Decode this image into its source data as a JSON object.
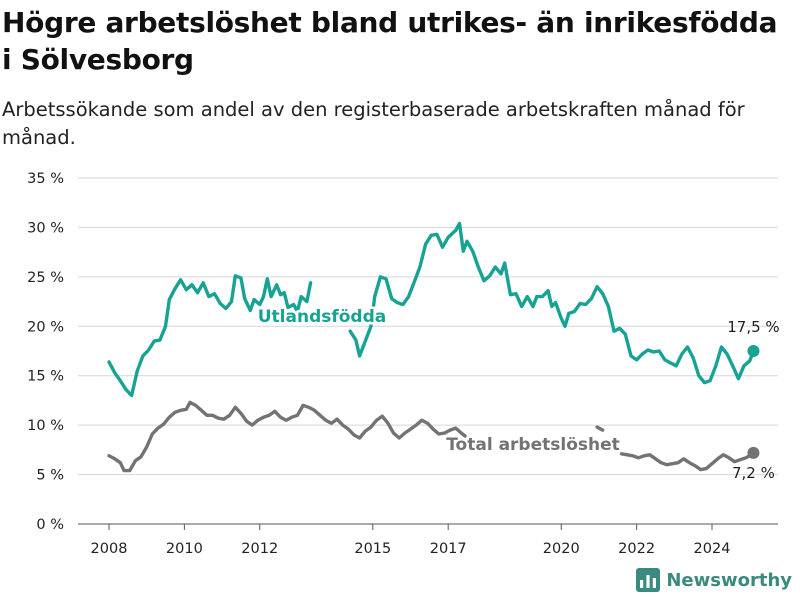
{
  "title": "Högre arbetslöshet bland utrikes- än inrikesfödda i Sölvesborg",
  "subtitle": "Arbetssökande som andel av den registerbaserade arbetskraften månad för månad.",
  "brand": {
    "name": "Newsworthy"
  },
  "colors": {
    "utlandsfodda": "#16a394",
    "total": "#737373",
    "grid": "#d6d6d6",
    "text": "#222222"
  },
  "chart_data": {
    "type": "line",
    "ylim": [
      0,
      35
    ],
    "xlim": [
      2007.5,
      2025.8
    ],
    "y_ticks": [
      0,
      5,
      10,
      15,
      20,
      25,
      30,
      35
    ],
    "y_tick_labels": [
      "0 %",
      "5 %",
      "10 %",
      "15 %",
      "20 %",
      "25 %",
      "30 %",
      "35 %"
    ],
    "x_ticks": [
      2008,
      2010,
      2012,
      2015,
      2017,
      2020,
      2022,
      2024
    ],
    "x_tick_labels": [
      "2008",
      "2010",
      "2012",
      "2015",
      "2017",
      "2020",
      "2022",
      "2024"
    ],
    "grid": true,
    "series": [
      {
        "name": "Utlandsfödda",
        "color": "#16a394",
        "end_label": "17,5 %",
        "segments": [
          [
            [
              2008.0,
              16.4
            ],
            [
              2008.15,
              15.3
            ],
            [
              2008.3,
              14.5
            ],
            [
              2008.45,
              13.6
            ],
            [
              2008.6,
              13.0
            ],
            [
              2008.75,
              15.5
            ],
            [
              2008.9,
              17.0
            ],
            [
              2009.05,
              17.6
            ],
            [
              2009.2,
              18.5
            ],
            [
              2009.35,
              18.6
            ],
            [
              2009.5,
              20.0
            ],
            [
              2009.6,
              22.7
            ],
            [
              2009.75,
              23.8
            ],
            [
              2009.9,
              24.7
            ],
            [
              2010.05,
              23.7
            ],
            [
              2010.2,
              24.2
            ],
            [
              2010.35,
              23.4
            ],
            [
              2010.5,
              24.4
            ],
            [
              2010.65,
              23.0
            ],
            [
              2010.8,
              23.3
            ],
            [
              2010.95,
              22.3
            ],
            [
              2011.1,
              21.8
            ],
            [
              2011.25,
              22.5
            ],
            [
              2011.35,
              25.1
            ],
            [
              2011.5,
              24.9
            ],
            [
              2011.6,
              22.8
            ],
            [
              2011.75,
              21.6
            ],
            [
              2011.85,
              22.7
            ],
            [
              2012.0,
              22.2
            ],
            [
              2012.1,
              23.0
            ],
            [
              2012.2,
              24.8
            ],
            [
              2012.3,
              23.0
            ],
            [
              2012.45,
              24.2
            ],
            [
              2012.55,
              23.2
            ],
            [
              2012.65,
              23.4
            ],
            [
              2012.75,
              21.9
            ],
            [
              2012.9,
              22.2
            ],
            [
              2013.0,
              21.5
            ],
            [
              2013.1,
              23.0
            ],
            [
              2013.25,
              22.5
            ],
            [
              2013.35,
              24.4
            ]
          ],
          [
            [
              2014.4,
              19.5
            ],
            [
              2014.55,
              18.6
            ],
            [
              2014.65,
              17.0
            ],
            [
              2014.8,
              18.5
            ],
            [
              2014.95,
              20.0
            ],
            [
              2015.05,
              23.0
            ],
            [
              2015.2,
              25.0
            ],
            [
              2015.35,
              24.8
            ],
            [
              2015.5,
              22.8
            ],
            [
              2015.65,
              22.4
            ],
            [
              2015.8,
              22.2
            ],
            [
              2015.95,
              23.0
            ],
            [
              2016.1,
              24.5
            ],
            [
              2016.25,
              26.0
            ],
            [
              2016.4,
              28.3
            ],
            [
              2016.55,
              29.2
            ],
            [
              2016.7,
              29.3
            ],
            [
              2016.85,
              28.0
            ],
            [
              2017.0,
              29.0
            ],
            [
              2017.2,
              29.7
            ],
            [
              2017.3,
              30.4
            ],
            [
              2017.4,
              27.6
            ],
            [
              2017.5,
              28.6
            ],
            [
              2017.65,
              27.6
            ],
            [
              2017.8,
              26.0
            ],
            [
              2017.95,
              24.6
            ],
            [
              2018.1,
              25.1
            ],
            [
              2018.25,
              26.0
            ],
            [
              2018.4,
              25.3
            ],
            [
              2018.5,
              26.4
            ],
            [
              2018.65,
              23.2
            ],
            [
              2018.8,
              23.3
            ],
            [
              2018.95,
              22.0
            ],
            [
              2019.1,
              23.0
            ],
            [
              2019.25,
              22.0
            ],
            [
              2019.35,
              23.0
            ],
            [
              2019.5,
              23.0
            ],
            [
              2019.65,
              23.6
            ],
            [
              2019.75,
              22.0
            ],
            [
              2019.85,
              22.4
            ],
            [
              2020.0,
              20.8
            ],
            [
              2020.1,
              20.0
            ],
            [
              2020.2,
              21.3
            ],
            [
              2020.35,
              21.5
            ],
            [
              2020.5,
              22.3
            ],
            [
              2020.65,
              22.2
            ],
            [
              2020.8,
              22.8
            ],
            [
              2020.95,
              24.0
            ],
            [
              2021.1,
              23.3
            ],
            [
              2021.25,
              22.0
            ],
            [
              2021.4,
              19.5
            ],
            [
              2021.55,
              19.8
            ],
            [
              2021.7,
              19.2
            ],
            [
              2021.85,
              17.0
            ],
            [
              2022.0,
              16.6
            ],
            [
              2022.15,
              17.2
            ],
            [
              2022.3,
              17.6
            ],
            [
              2022.45,
              17.4
            ],
            [
              2022.6,
              17.5
            ],
            [
              2022.75,
              16.6
            ],
            [
              2022.9,
              16.3
            ],
            [
              2023.05,
              16.0
            ],
            [
              2023.2,
              17.2
            ],
            [
              2023.35,
              17.9
            ],
            [
              2023.5,
              16.8
            ],
            [
              2023.65,
              15.0
            ],
            [
              2023.8,
              14.3
            ],
            [
              2023.95,
              14.5
            ],
            [
              2024.1,
              16.0
            ],
            [
              2024.25,
              17.9
            ],
            [
              2024.4,
              17.2
            ],
            [
              2024.55,
              16.0
            ],
            [
              2024.7,
              14.7
            ],
            [
              2024.85,
              16.0
            ],
            [
              2025.0,
              16.5
            ],
            [
              2025.1,
              17.5
            ]
          ]
        ]
      },
      {
        "name": "Total arbetslöshet",
        "color": "#737373",
        "end_label": "7,2 %",
        "segments": [
          [
            [
              2008.0,
              6.9
            ],
            [
              2008.15,
              6.6
            ],
            [
              2008.3,
              6.2
            ],
            [
              2008.4,
              5.4
            ],
            [
              2008.55,
              5.4
            ],
            [
              2008.7,
              6.4
            ],
            [
              2008.85,
              6.8
            ],
            [
              2009.0,
              7.8
            ],
            [
              2009.15,
              9.1
            ],
            [
              2009.3,
              9.7
            ],
            [
              2009.45,
              10.1
            ],
            [
              2009.6,
              10.8
            ],
            [
              2009.75,
              11.3
            ],
            [
              2009.9,
              11.5
            ],
            [
              2010.05,
              11.6
            ],
            [
              2010.15,
              12.3
            ],
            [
              2010.3,
              12.0
            ],
            [
              2010.45,
              11.5
            ],
            [
              2010.6,
              11.0
            ],
            [
              2010.75,
              11.0
            ],
            [
              2010.9,
              10.7
            ],
            [
              2011.05,
              10.6
            ],
            [
              2011.2,
              11.0
            ],
            [
              2011.35,
              11.8
            ],
            [
              2011.5,
              11.2
            ],
            [
              2011.65,
              10.4
            ],
            [
              2011.8,
              10.0
            ],
            [
              2011.95,
              10.5
            ],
            [
              2012.1,
              10.8
            ],
            [
              2012.25,
              11.0
            ],
            [
              2012.4,
              11.4
            ],
            [
              2012.55,
              10.8
            ],
            [
              2012.7,
              10.5
            ],
            [
              2012.85,
              10.8
            ],
            [
              2013.0,
              11.0
            ],
            [
              2013.15,
              12.0
            ],
            [
              2013.3,
              11.8
            ],
            [
              2013.45,
              11.5
            ],
            [
              2013.6,
              11.0
            ],
            [
              2013.75,
              10.5
            ],
            [
              2013.9,
              10.2
            ],
            [
              2014.05,
              10.6
            ],
            [
              2014.2,
              10.0
            ],
            [
              2014.35,
              9.6
            ],
            [
              2014.5,
              9.0
            ],
            [
              2014.65,
              8.7
            ],
            [
              2014.8,
              9.4
            ],
            [
              2014.95,
              9.8
            ],
            [
              2015.1,
              10.5
            ],
            [
              2015.25,
              10.9
            ],
            [
              2015.4,
              10.2
            ],
            [
              2015.55,
              9.2
            ],
            [
              2015.7,
              8.7
            ],
            [
              2015.85,
              9.2
            ],
            [
              2016.0,
              9.6
            ],
            [
              2016.15,
              10.0
            ],
            [
              2016.3,
              10.5
            ],
            [
              2016.45,
              10.2
            ],
            [
              2016.6,
              9.6
            ],
            [
              2016.75,
              9.1
            ],
            [
              2016.9,
              9.2
            ],
            [
              2017.05,
              9.5
            ],
            [
              2017.2,
              9.7
            ],
            [
              2017.35,
              9.2
            ],
            [
              2017.45,
              8.9
            ]
          ],
          [
            [
              2020.95,
              9.8
            ],
            [
              2021.1,
              9.5
            ]
          ],
          [
            [
              2021.6,
              7.1
            ],
            [
              2021.75,
              7.0
            ],
            [
              2021.9,
              6.9
            ],
            [
              2022.05,
              6.7
            ],
            [
              2022.2,
              6.9
            ],
            [
              2022.35,
              7.0
            ],
            [
              2022.5,
              6.6
            ],
            [
              2022.65,
              6.2
            ],
            [
              2022.8,
              6.0
            ],
            [
              2022.95,
              6.1
            ],
            [
              2023.1,
              6.2
            ],
            [
              2023.25,
              6.6
            ],
            [
              2023.4,
              6.2
            ],
            [
              2023.55,
              5.9
            ],
            [
              2023.7,
              5.5
            ],
            [
              2023.85,
              5.6
            ],
            [
              2024.0,
              6.1
            ],
            [
              2024.15,
              6.6
            ],
            [
              2024.3,
              7.0
            ],
            [
              2024.45,
              6.7
            ],
            [
              2024.6,
              6.3
            ],
            [
              2024.75,
              6.5
            ],
            [
              2024.9,
              6.7
            ],
            [
              2025.0,
              6.9
            ],
            [
              2025.1,
              7.2
            ]
          ]
        ]
      }
    ]
  }
}
